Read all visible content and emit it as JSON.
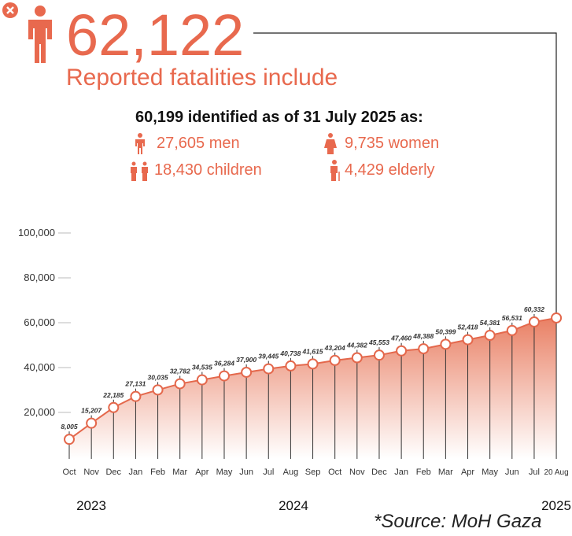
{
  "header": {
    "total": "62,122",
    "subtitle": "Reported fatalities include",
    "identified": "60,199 identified as of 31 July 2025 as:",
    "breakdown": [
      "27,605 men",
      "9,735 women",
      "18,430 children",
      "4,429 elderly"
    ]
  },
  "chart_data": {
    "type": "line",
    "color": "#e4684c",
    "categories": [
      "Oct",
      "Nov",
      "Dec",
      "Jan",
      "Feb",
      "Mar",
      "Apr",
      "May",
      "Jun",
      "Jul",
      "Aug",
      "Sep",
      "Oct",
      "Nov",
      "Dec",
      "Jan",
      "Feb",
      "Mar",
      "Apr",
      "May",
      "Jun",
      "Jul",
      "20 Aug"
    ],
    "values": [
      8005,
      15207,
      22185,
      27131,
      30035,
      32782,
      34535,
      36284,
      37900,
      39445,
      40738,
      41615,
      43204,
      44382,
      45553,
      47460,
      48388,
      50399,
      52418,
      54381,
      56531,
      60332,
      62122
    ],
    "value_labels": [
      "8,005",
      "15,207",
      "22,185",
      "27,131",
      "30,035",
      "32,782",
      "34,535",
      "36,284",
      "37,900",
      "39,445",
      "40,738",
      "41,615",
      "43,204",
      "44,382",
      "45,553",
      "47,460",
      "48,388",
      "50,399",
      "52,418",
      "54,381",
      "56,531",
      "60,332",
      null
    ],
    "ylim": [
      0,
      100000
    ],
    "yticks": [
      {
        "value": 20000,
        "label": "20,000"
      },
      {
        "value": 40000,
        "label": "40,000"
      },
      {
        "value": 60000,
        "label": "60,000"
      },
      {
        "value": 80000,
        "label": "80,000"
      },
      {
        "value": 100000,
        "label": "100,000"
      }
    ],
    "years": [
      "2023",
      "2024",
      "2025"
    ]
  },
  "source": "*Source: MoH Gaza"
}
